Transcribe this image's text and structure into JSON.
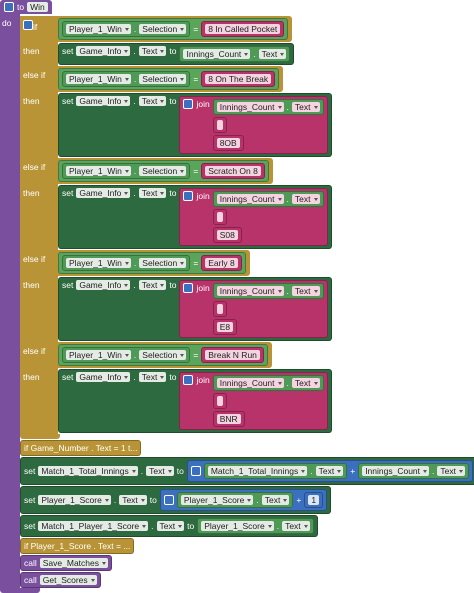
{
  "procedure": {
    "keyword": "to",
    "name": "Win",
    "body_label": "do"
  },
  "labels": {
    "if": "if",
    "else_if": "else if",
    "then": "then",
    "set": "set",
    "to": "to",
    "dot": ".",
    "join": "join",
    "call": "call",
    "equals": "=",
    "plus": "+"
  },
  "branches": [
    {
      "component": "Player_1_Win",
      "property": "Selection",
      "value": "8 In Called Pocket",
      "target": "Game_Info",
      "target_property": "Text",
      "source": "Innings_Count",
      "source_property": "Text"
    },
    {
      "component": "Player_1_Win",
      "property": "Selection",
      "value": "8 On The Break",
      "target": "Game_Info",
      "target_property": "Text",
      "join": {
        "source": "Innings_Count",
        "source_property": "Text",
        "suffix": "8OB"
      }
    },
    {
      "component": "Player_1_Win",
      "property": "Selection",
      "value": "Scratch On 8",
      "target": "Game_Info",
      "target_property": "Text",
      "join": {
        "source": "Innings_Count",
        "source_property": "Text",
        "suffix": "S08"
      }
    },
    {
      "component": "Player_1_Win",
      "property": "Selection",
      "value": "Early 8",
      "target": "Game_Info",
      "target_property": "Text",
      "join": {
        "source": "Innings_Count",
        "source_property": "Text",
        "suffix": "E8"
      }
    },
    {
      "component": "Player_1_Win",
      "property": "Selection",
      "value": "Break N Run",
      "target": "Game_Info",
      "target_property": "Text",
      "join": {
        "source": "Innings_Count",
        "source_property": "Text",
        "suffix": "BNR"
      }
    }
  ],
  "statements": [
    {
      "collapsed": "if Game_Number . Text = 1 t..."
    },
    {
      "target": "Match_1_Total_Innings",
      "target_property": "Text",
      "sum": {
        "left_component": "Match_1_Total_Innings",
        "left_property": "Text",
        "right_component": "Innings_Count",
        "right_property": "Text"
      }
    },
    {
      "target": "Player_1_Score",
      "target_property": "Text",
      "sum": {
        "left_component": "Player_1_Score",
        "left_property": "Text",
        "right_number": 1
      }
    },
    {
      "target": "Match_1_Player_1_Score",
      "target_property": "Text",
      "source": "Player_1_Score",
      "source_property": "Text"
    },
    {
      "collapsed": "if Player_1_Score . Text = ..."
    },
    {
      "call": "Save_Matches"
    },
    {
      "call": "Get_Scores"
    }
  ]
}
